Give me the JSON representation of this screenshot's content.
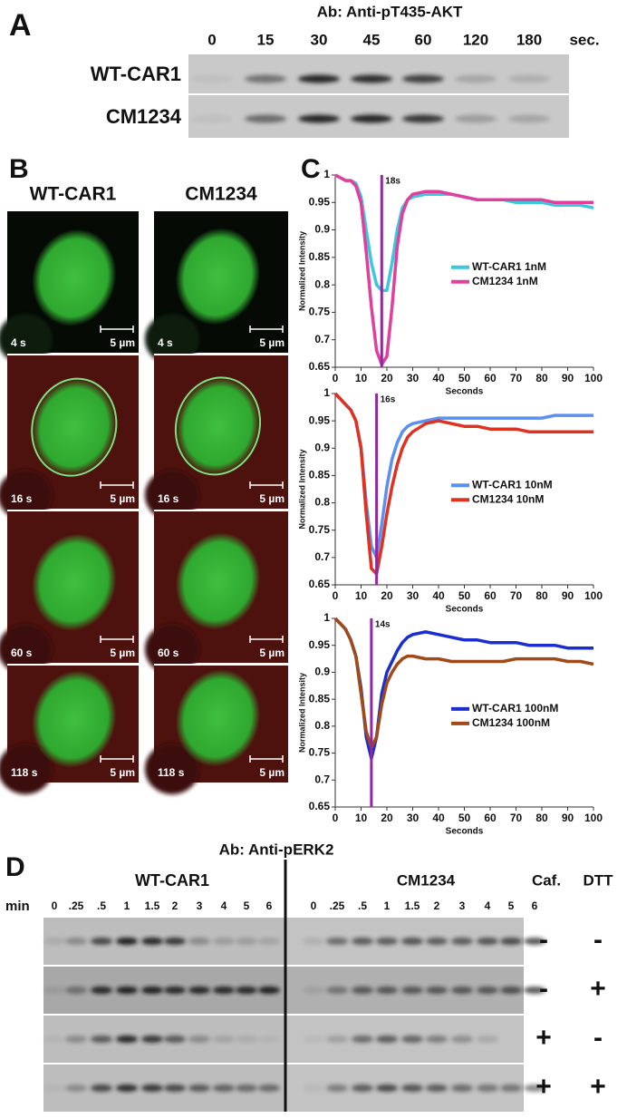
{
  "panel_a": {
    "letter": "A",
    "antibody": "Ab: Anti-pT435-AKT",
    "times": [
      "0",
      "15",
      "30",
      "45",
      "60",
      "120",
      "180"
    ],
    "unit": "sec.",
    "rows": [
      "WT-CAR1",
      "CM1234"
    ]
  },
  "panel_b": {
    "letter": "B",
    "columns": [
      "WT-CAR1",
      "CM1234"
    ],
    "times": [
      "4 s",
      "16 s",
      "60 s",
      "118 s"
    ],
    "scale": "5 µm"
  },
  "panel_c": {
    "letter": "C"
  },
  "chart_data": [
    {
      "type": "line",
      "xlabel": "Seconds",
      "ylabel": "Normalized Intensity",
      "x": [
        0,
        2,
        4,
        6,
        8,
        10,
        12,
        14,
        16,
        18,
        20,
        22,
        24,
        26,
        28,
        30,
        35,
        40,
        45,
        50,
        55,
        60,
        65,
        70,
        75,
        80,
        85,
        90,
        95,
        100
      ],
      "xlim": [
        0,
        100
      ],
      "xticks": [
        0,
        10,
        20,
        30,
        40,
        50,
        60,
        70,
        80,
        90,
        100
      ],
      "ylim": [
        0.65,
        1
      ],
      "yticks": [
        0.65,
        0.7,
        0.75,
        0.8,
        0.85,
        0.9,
        0.95,
        1
      ],
      "annotation": {
        "x": 18,
        "label": "18s",
        "color": "#8e2a9e"
      },
      "legend": "right",
      "series": [
        {
          "name": "WT-CAR1 1nM",
          "color": "#3cc8dc",
          "values": [
            1,
            0.995,
            0.99,
            0.99,
            0.985,
            0.96,
            0.9,
            0.84,
            0.8,
            0.79,
            0.79,
            0.84,
            0.9,
            0.94,
            0.955,
            0.96,
            0.965,
            0.965,
            0.965,
            0.96,
            0.955,
            0.955,
            0.955,
            0.95,
            0.95,
            0.95,
            0.945,
            0.945,
            0.945,
            0.94
          ]
        },
        {
          "name": "CM1234 1nM",
          "color": "#e0409c",
          "values": [
            1,
            0.995,
            0.99,
            0.99,
            0.98,
            0.95,
            0.86,
            0.76,
            0.68,
            0.655,
            0.67,
            0.76,
            0.87,
            0.93,
            0.955,
            0.965,
            0.97,
            0.97,
            0.965,
            0.96,
            0.955,
            0.955,
            0.955,
            0.955,
            0.955,
            0.955,
            0.95,
            0.95,
            0.95,
            0.95
          ]
        }
      ]
    },
    {
      "type": "line",
      "xlabel": "Seconds",
      "ylabel": "Normalized Intensity",
      "x": [
        0,
        2,
        4,
        6,
        8,
        10,
        12,
        14,
        16,
        18,
        20,
        22,
        24,
        26,
        28,
        30,
        35,
        40,
        45,
        50,
        55,
        60,
        65,
        70,
        75,
        80,
        85,
        90,
        95,
        100
      ],
      "xlim": [
        0,
        100
      ],
      "xticks": [
        0,
        10,
        20,
        30,
        40,
        50,
        60,
        70,
        80,
        90,
        100
      ],
      "ylim": [
        0.65,
        1
      ],
      "yticks": [
        0.65,
        0.7,
        0.75,
        0.8,
        0.85,
        0.9,
        0.95,
        1
      ],
      "annotation": {
        "x": 16,
        "label": "16s",
        "color": "#8e2a9e"
      },
      "legend": "right",
      "series": [
        {
          "name": "WT-CAR1 10nM",
          "color": "#5b8ff0",
          "values": [
            1,
            0.99,
            0.98,
            0.97,
            0.95,
            0.9,
            0.8,
            0.72,
            0.7,
            0.76,
            0.83,
            0.88,
            0.91,
            0.93,
            0.94,
            0.945,
            0.95,
            0.955,
            0.955,
            0.955,
            0.955,
            0.955,
            0.955,
            0.955,
            0.955,
            0.955,
            0.96,
            0.96,
            0.96,
            0.96
          ]
        },
        {
          "name": "CM1234 10nM",
          "color": "#e03020",
          "values": [
            1,
            0.99,
            0.98,
            0.97,
            0.95,
            0.9,
            0.78,
            0.68,
            0.67,
            0.72,
            0.78,
            0.83,
            0.87,
            0.9,
            0.92,
            0.93,
            0.945,
            0.95,
            0.945,
            0.94,
            0.94,
            0.935,
            0.935,
            0.935,
            0.93,
            0.93,
            0.93,
            0.93,
            0.93,
            0.93
          ]
        }
      ]
    },
    {
      "type": "line",
      "xlabel": "Seconds",
      "ylabel": "Normalized Intensity",
      "x": [
        0,
        2,
        4,
        6,
        8,
        10,
        12,
        14,
        16,
        18,
        20,
        22,
        24,
        26,
        28,
        30,
        35,
        40,
        45,
        50,
        55,
        60,
        65,
        70,
        75,
        80,
        85,
        90,
        95,
        100
      ],
      "xlim": [
        0,
        100
      ],
      "xticks": [
        0,
        10,
        20,
        30,
        40,
        50,
        60,
        70,
        80,
        90,
        100
      ],
      "ylim": [
        0.65,
        1
      ],
      "yticks": [
        0.65,
        0.7,
        0.75,
        0.8,
        0.85,
        0.9,
        0.95,
        1
      ],
      "annotation": {
        "x": 14,
        "label": "14s",
        "color": "#8e2a9e"
      },
      "legend": "right",
      "series": [
        {
          "name": "WT-CAR1 100nM",
          "color": "#1a2ed0",
          "values": [
            1,
            0.99,
            0.98,
            0.96,
            0.93,
            0.87,
            0.78,
            0.74,
            0.78,
            0.86,
            0.9,
            0.92,
            0.94,
            0.955,
            0.965,
            0.97,
            0.975,
            0.97,
            0.965,
            0.96,
            0.96,
            0.955,
            0.955,
            0.955,
            0.95,
            0.95,
            0.95,
            0.945,
            0.945,
            0.945
          ]
        },
        {
          "name": "CM1234 100nM",
          "color": "#a04a1a",
          "values": [
            1,
            0.99,
            0.98,
            0.96,
            0.93,
            0.86,
            0.79,
            0.76,
            0.78,
            0.84,
            0.88,
            0.9,
            0.915,
            0.925,
            0.93,
            0.93,
            0.925,
            0.925,
            0.92,
            0.92,
            0.92,
            0.92,
            0.92,
            0.925,
            0.925,
            0.925,
            0.925,
            0.92,
            0.92,
            0.915
          ]
        }
      ]
    }
  ],
  "panel_d": {
    "letter": "D",
    "antibody": "Ab: Anti-pERK2",
    "groups": [
      "WT-CAR1",
      "CM1234"
    ],
    "min_label": "min",
    "times": [
      "0",
      ".25",
      ".5",
      "1",
      "1.5",
      "2",
      "3",
      "4",
      "5",
      "6"
    ],
    "conditions": [
      "Caf.",
      "DTT"
    ],
    "rows": [
      [
        "-",
        "-"
      ],
      [
        "-",
        "+"
      ],
      [
        "+",
        "-"
      ],
      [
        "+",
        "+"
      ]
    ]
  }
}
